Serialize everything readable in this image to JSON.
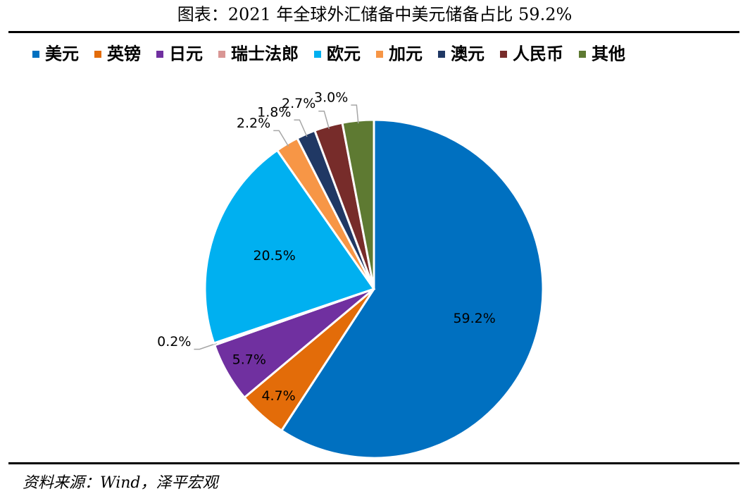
{
  "chart_data": {
    "type": "pie",
    "title": "图表：2021 年全球外汇储备中美元储备占比 59.2%",
    "categories": [
      "美元",
      "英镑",
      "日元",
      "瑞士法郎",
      "欧元",
      "加元",
      "澳元",
      "人民币",
      "其他"
    ],
    "values": [
      59.2,
      4.7,
      5.7,
      0.2,
      20.5,
      2.2,
      1.8,
      2.7,
      3.0
    ],
    "value_labels": [
      "59.2%",
      "4.7%",
      "5.7%",
      "0.2%",
      "20.5%",
      "2.2%",
      "1.8%",
      "2.7%",
      "3.0%"
    ],
    "colors": [
      "#0070C0",
      "#E36C09",
      "#7030A0",
      "#D99694",
      "#00B0F0",
      "#F79646",
      "#203864",
      "#772C2A",
      "#5E7A32"
    ],
    "source": "资料来源：Wind，泽平宏观"
  }
}
